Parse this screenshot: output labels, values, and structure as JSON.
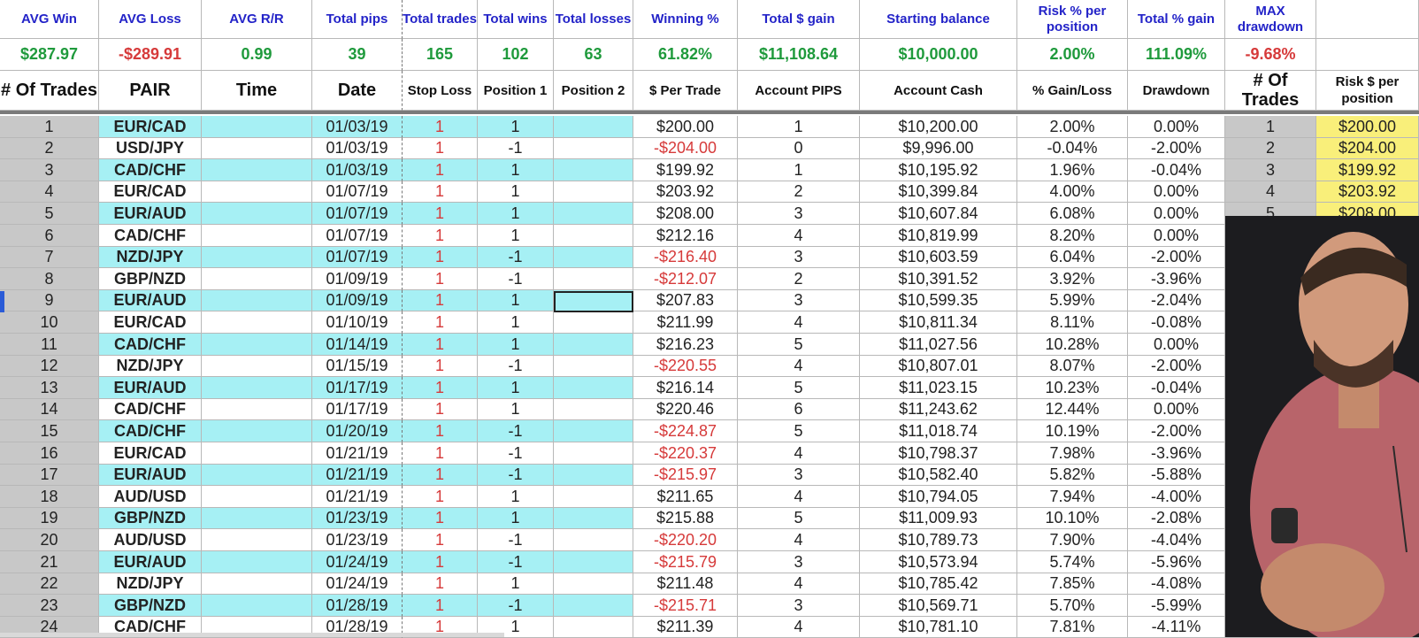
{
  "stats": {
    "labels": [
      "AVG Win",
      "AVG Loss",
      "AVG R/R",
      "Total pips",
      "Total trades",
      "Total wins",
      "Total losses",
      "Winning %",
      "Total $ gain",
      "Starting balance",
      "Risk % per position",
      "Total % gain",
      "MAX drawdown"
    ],
    "values": [
      "$287.97",
      "-$289.91",
      "0.99",
      "39",
      "165",
      "102",
      "63",
      "61.82%",
      "$11,108.64",
      "$10,000.00",
      "2.00%",
      "111.09%",
      "-9.68%"
    ]
  },
  "headers": [
    "# Of Trades",
    "PAIR",
    "Time",
    "Date",
    "Stop Loss",
    "Position 1",
    "Position 2",
    "$ Per Trade",
    "Account PIPS",
    "Account Cash",
    "% Gain/Loss",
    "Drawdown",
    "# Of Trades",
    "Risk $ per position"
  ],
  "rows": [
    [
      "1",
      "EUR/CAD",
      "",
      "01/03/19",
      "1",
      "1",
      "",
      "$200.00",
      "1",
      "$10,200.00",
      "2.00%",
      "0.00%",
      "1",
      "$200.00"
    ],
    [
      "2",
      "USD/JPY",
      "",
      "01/03/19",
      "1",
      "-1",
      "",
      "-$204.00",
      "0",
      "$9,996.00",
      "-0.04%",
      "-2.00%",
      "2",
      "$204.00"
    ],
    [
      "3",
      "CAD/CHF",
      "",
      "01/03/19",
      "1",
      "1",
      "",
      "$199.92",
      "1",
      "$10,195.92",
      "1.96%",
      "-0.04%",
      "3",
      "$199.92"
    ],
    [
      "4",
      "EUR/CAD",
      "",
      "01/07/19",
      "1",
      "1",
      "",
      "$203.92",
      "2",
      "$10,399.84",
      "4.00%",
      "0.00%",
      "4",
      "$203.92"
    ],
    [
      "5",
      "EUR/AUD",
      "",
      "01/07/19",
      "1",
      "1",
      "",
      "$208.00",
      "3",
      "$10,607.84",
      "6.08%",
      "0.00%",
      "5",
      "$208.00"
    ],
    [
      "6",
      "CAD/CHF",
      "",
      "01/07/19",
      "1",
      "1",
      "",
      "$212.16",
      "4",
      "$10,819.99",
      "8.20%",
      "0.00%",
      "",
      ""
    ],
    [
      "7",
      "NZD/JPY",
      "",
      "01/07/19",
      "1",
      "-1",
      "",
      "-$216.40",
      "3",
      "$10,603.59",
      "6.04%",
      "-2.00%",
      "",
      ""
    ],
    [
      "8",
      "GBP/NZD",
      "",
      "01/09/19",
      "1",
      "-1",
      "",
      "-$212.07",
      "2",
      "$10,391.52",
      "3.92%",
      "-3.96%",
      "",
      ""
    ],
    [
      "9",
      "EUR/AUD",
      "",
      "01/09/19",
      "1",
      "1",
      "",
      "$207.83",
      "3",
      "$10,599.35",
      "5.99%",
      "-2.04%",
      "",
      ""
    ],
    [
      "10",
      "EUR/CAD",
      "",
      "01/10/19",
      "1",
      "1",
      "",
      "$211.99",
      "4",
      "$10,811.34",
      "8.11%",
      "-0.08%",
      "",
      ""
    ],
    [
      "11",
      "CAD/CHF",
      "",
      "01/14/19",
      "1",
      "1",
      "",
      "$216.23",
      "5",
      "$11,027.56",
      "10.28%",
      "0.00%",
      "",
      ""
    ],
    [
      "12",
      "NZD/JPY",
      "",
      "01/15/19",
      "1",
      "-1",
      "",
      "-$220.55",
      "4",
      "$10,807.01",
      "8.07%",
      "-2.00%",
      "",
      ""
    ],
    [
      "13",
      "EUR/AUD",
      "",
      "01/17/19",
      "1",
      "1",
      "",
      "$216.14",
      "5",
      "$11,023.15",
      "10.23%",
      "-0.04%",
      "",
      ""
    ],
    [
      "14",
      "CAD/CHF",
      "",
      "01/17/19",
      "1",
      "1",
      "",
      "$220.46",
      "6",
      "$11,243.62",
      "12.44%",
      "0.00%",
      "",
      ""
    ],
    [
      "15",
      "CAD/CHF",
      "",
      "01/20/19",
      "1",
      "-1",
      "",
      "-$224.87",
      "5",
      "$11,018.74",
      "10.19%",
      "-2.00%",
      "",
      ""
    ],
    [
      "16",
      "EUR/CAD",
      "",
      "01/21/19",
      "1",
      "-1",
      "",
      "-$220.37",
      "4",
      "$10,798.37",
      "7.98%",
      "-3.96%",
      "",
      ""
    ],
    [
      "17",
      "EUR/AUD",
      "",
      "01/21/19",
      "1",
      "-1",
      "",
      "-$215.97",
      "3",
      "$10,582.40",
      "5.82%",
      "-5.88%",
      "",
      ""
    ],
    [
      "18",
      "AUD/USD",
      "",
      "01/21/19",
      "1",
      "1",
      "",
      "$211.65",
      "4",
      "$10,794.05",
      "7.94%",
      "-4.00%",
      "",
      ""
    ],
    [
      "19",
      "GBP/NZD",
      "",
      "01/23/19",
      "1",
      "1",
      "",
      "$215.88",
      "5",
      "$11,009.93",
      "10.10%",
      "-2.08%",
      "",
      ""
    ],
    [
      "20",
      "AUD/USD",
      "",
      "01/23/19",
      "1",
      "-1",
      "",
      "-$220.20",
      "4",
      "$10,789.73",
      "7.90%",
      "-4.04%",
      "",
      ""
    ],
    [
      "21",
      "EUR/AUD",
      "",
      "01/24/19",
      "1",
      "-1",
      "",
      "-$215.79",
      "3",
      "$10,573.94",
      "5.74%",
      "-5.96%",
      "",
      ""
    ],
    [
      "22",
      "NZD/JPY",
      "",
      "01/24/19",
      "1",
      "1",
      "",
      "$211.48",
      "4",
      "$10,785.42",
      "7.85%",
      "-4.08%",
      "",
      ""
    ],
    [
      "23",
      "GBP/NZD",
      "",
      "01/28/19",
      "1",
      "-1",
      "",
      "-$215.71",
      "3",
      "$10,569.71",
      "5.70%",
      "-5.99%",
      "",
      ""
    ],
    [
      "24",
      "CAD/CHF",
      "",
      "01/28/19",
      "1",
      "1",
      "",
      "$211.39",
      "4",
      "$10,781.10",
      "7.81%",
      "-4.11%",
      "",
      ""
    ]
  ],
  "colors": {
    "label_blue": "#2323c8",
    "positive_green": "#1f9a3c",
    "negative_red": "#d63a3a",
    "cyan_fill": "#a6f0f4",
    "gray_fill": "#c8c8c8",
    "yellow_fill": "#f9ef7a"
  },
  "webcam": {
    "description_icon": "person-video-icon"
  }
}
